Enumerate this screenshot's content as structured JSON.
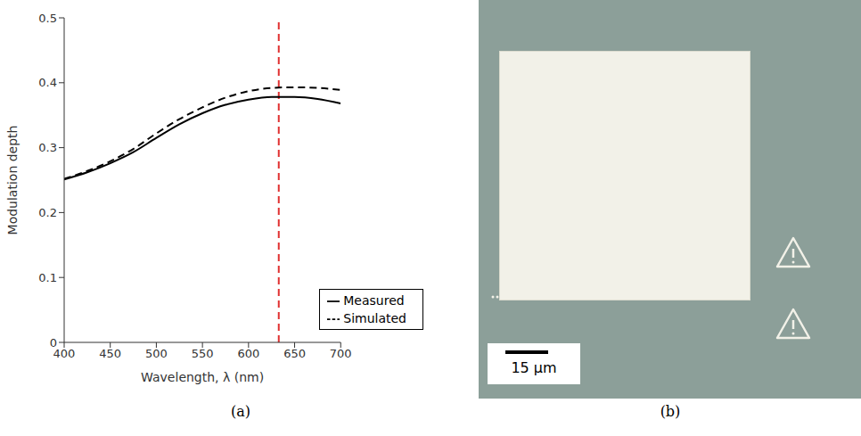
{
  "chart_data": {
    "type": "line",
    "caption": "(a)",
    "x_label": "Wavelength, λ (nm)",
    "y_label": "Modulation depth",
    "x": [
      400,
      425,
      450,
      475,
      500,
      525,
      550,
      575,
      600,
      625,
      650,
      675,
      700
    ],
    "series": [
      {
        "name": "Simulated",
        "color": "#000000",
        "line_style": "dashed",
        "values": [
          0.252,
          0.264,
          0.279,
          0.298,
          0.322,
          0.344,
          0.362,
          0.377,
          0.387,
          0.392,
          0.393,
          0.392,
          0.389
        ]
      },
      {
        "name": "Measured",
        "color": "#000000",
        "line_style": "solid",
        "values": [
          0.251,
          0.262,
          0.276,
          0.293,
          0.315,
          0.336,
          0.353,
          0.366,
          0.374,
          0.378,
          0.378,
          0.375,
          0.368
        ]
      }
    ],
    "reference_line": {
      "x": 632.8,
      "color": "#e03030",
      "line_style": "dashed"
    },
    "xlim": [
      400,
      700
    ],
    "xticks": [
      400,
      450,
      500,
      550,
      600,
      650,
      700
    ],
    "ylim": [
      0,
      0.5
    ],
    "yticks": [
      0,
      0.1,
      0.2,
      0.3,
      0.4,
      0.5
    ],
    "grid": false,
    "legend": "lower right"
  },
  "image": {
    "caption": "(b)",
    "scale_bar_label": "15 µm"
  }
}
